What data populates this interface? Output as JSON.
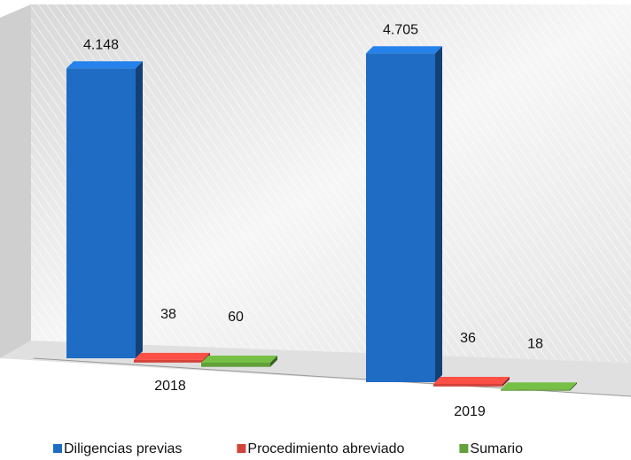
{
  "chart_data": {
    "type": "bar3d",
    "categories": [
      "2018",
      "2019"
    ],
    "series": [
      {
        "name": "Diligencias previas",
        "color": "#1f6cc4",
        "values": [
          4148,
          4705
        ],
        "value_labels": [
          "4.148",
          "4.705"
        ]
      },
      {
        "name": "Procedimiento abreviado",
        "color": "#d2433a",
        "values": [
          38,
          36
        ]
      },
      {
        "name": "Sumario",
        "color": "#62a03a",
        "values": [
          60,
          18
        ]
      }
    ],
    "ylim": [
      0,
      5000
    ],
    "legend": "bottom"
  }
}
